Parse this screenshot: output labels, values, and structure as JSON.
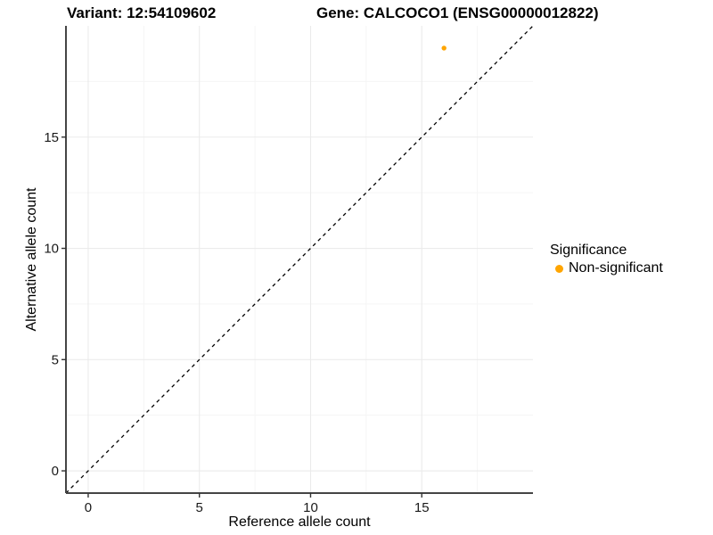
{
  "header": {
    "variant_title": "Variant: 12:54109602",
    "gene_title": "Gene: CALCOCO1 (ENSG00000012822)"
  },
  "axes": {
    "x_label": "Reference allele count",
    "y_label": "Alternative allele count"
  },
  "legend": {
    "title": "Significance",
    "items": [
      {
        "label": "Non-significant",
        "color": "#FFA500"
      }
    ]
  },
  "style": {
    "background": "#ffffff",
    "grid_major_color": "#EBEBEB",
    "grid_minor_color": "#F5F5F5",
    "axis_line_color": "#454545",
    "tick_color": "#333333",
    "tick_label_color": "#1a1a1a",
    "identity_line_color": "#000000",
    "point_color": "#FFA500"
  },
  "chart_data": {
    "type": "scatter",
    "title": "Variant: 12:54109602 | Gene: CALCOCO1 (ENSG00000012822)",
    "xlabel": "Reference allele count",
    "ylabel": "Alternative allele count",
    "xlim": [
      -1,
      20
    ],
    "ylim": [
      -1,
      20
    ],
    "x_major_ticks": [
      0,
      5,
      10,
      15
    ],
    "y_major_ticks": [
      0,
      5,
      10,
      15
    ],
    "x_minor_ticks": [
      2.5,
      7.5,
      12.5,
      17.5
    ],
    "y_minor_ticks": [
      2.5,
      7.5,
      12.5,
      17.5
    ],
    "grid": "major+minor",
    "legend_position": "right",
    "identity_line": {
      "from": [
        -1,
        -1
      ],
      "to": [
        20,
        20
      ],
      "style": "dashed",
      "color": "#000000"
    },
    "series": [
      {
        "name": "Non-significant",
        "color": "#FFA500",
        "marker": "circle",
        "points": [
          {
            "x": 16,
            "y": 19
          }
        ]
      }
    ]
  }
}
